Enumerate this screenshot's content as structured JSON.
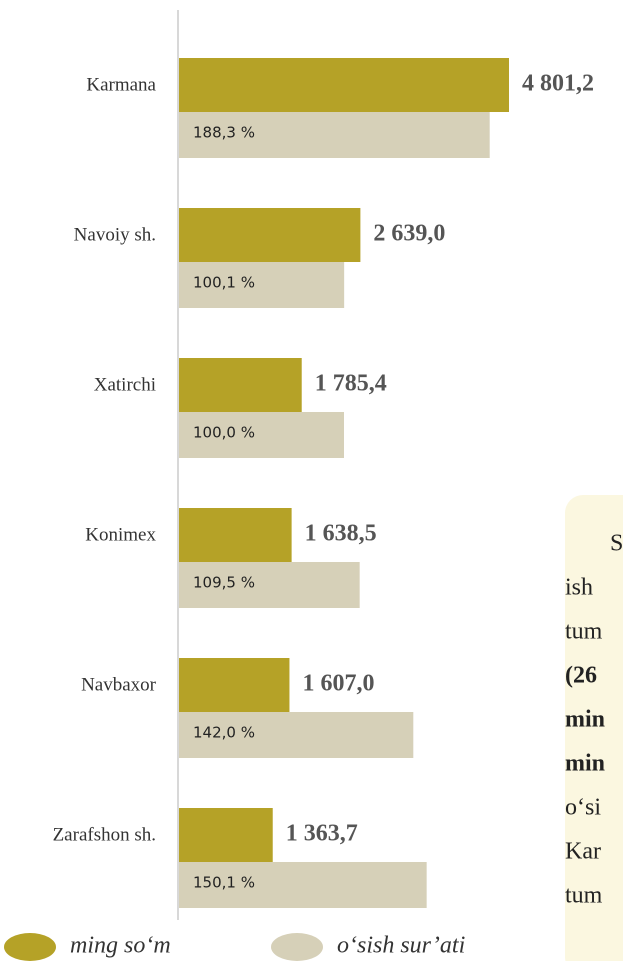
{
  "chart_data": {
    "type": "bar",
    "orientation": "horizontal",
    "categories": [
      "Karmana",
      "Navoiy sh.",
      "Xatirchi",
      "Konimex",
      "Navbaxor",
      "Zarafshon sh."
    ],
    "series": [
      {
        "name": "ming so‘m",
        "color": "#b5a227",
        "values": [
          4801.2,
          2639.0,
          1785.4,
          1638.5,
          1607.0,
          1363.7
        ],
        "value_labels": [
          "4 801,2",
          "2 639,0",
          "1 785,4",
          "1 638,5",
          "1 607,0",
          "1 363,7"
        ]
      },
      {
        "name": "o‘sish sur’ati",
        "color": "#d6d0b8",
        "values": [
          188.3,
          100.1,
          100.0,
          109.5,
          142.0,
          150.1
        ],
        "value_labels": [
          "188,3 %",
          "100,1 %",
          "100,0 %",
          "109,5 %",
          "142,0 %",
          "150,1 %"
        ]
      }
    ]
  },
  "side_text": {
    "lines": [
      {
        "text": "S",
        "bold": false,
        "indent": true
      },
      {
        "text": "ish",
        "bold": false,
        "indent": false
      },
      {
        "text": "tum",
        "bold": false,
        "indent": false
      },
      {
        "text": "(26",
        "bold": true,
        "indent": false
      },
      {
        "text": "min",
        "bold": true,
        "indent": false
      },
      {
        "text": "min",
        "bold": true,
        "indent": false
      },
      {
        "text": "o‘si",
        "bold": false,
        "indent": false
      },
      {
        "text": "Kar",
        "bold": false,
        "indent": false
      },
      {
        "text": "tum",
        "bold": false,
        "indent": false
      }
    ]
  }
}
